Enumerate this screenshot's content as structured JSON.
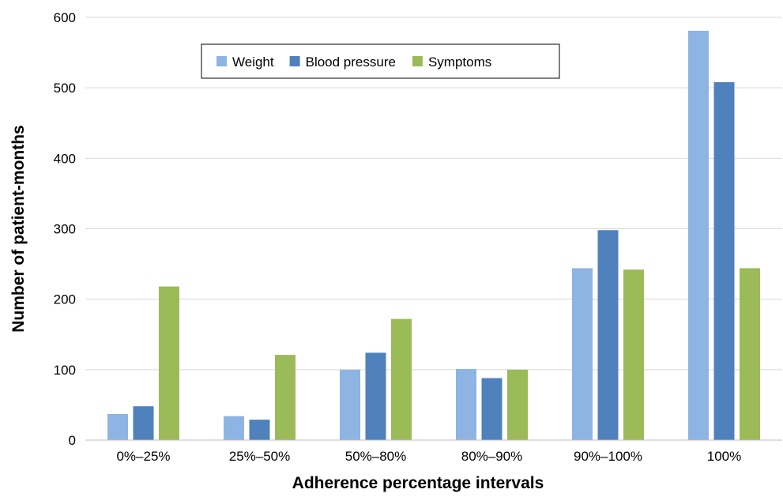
{
  "chart_data": {
    "type": "bar",
    "title": "",
    "xlabel": "Adherence percentage intervals",
    "ylabel": "Number of patient-months",
    "categories": [
      "0%–25%",
      "25%–50%",
      "50%–80%",
      "80%–90%",
      "90%–100%",
      "100%"
    ],
    "ylim": [
      0,
      600
    ],
    "yticks": [
      0,
      100,
      200,
      300,
      400,
      500,
      600
    ],
    "grid": true,
    "legend": "top-left",
    "series": [
      {
        "name": "Weight",
        "color": "#8eb4e3",
        "values": [
          37,
          34,
          100,
          101,
          244,
          581
        ]
      },
      {
        "name": "Blood pressure",
        "color": "#4f81bd",
        "values": [
          48,
          29,
          124,
          88,
          298,
          508
        ]
      },
      {
        "name": "Symptoms",
        "color": "#9bbb59",
        "values": [
          218,
          121,
          172,
          100,
          242,
          244
        ]
      }
    ]
  }
}
